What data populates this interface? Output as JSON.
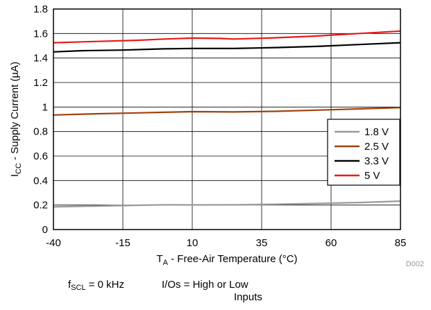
{
  "chart_data": {
    "type": "line",
    "xlabel": {
      "main": "T",
      "sub": "A",
      "rest": " - Free-Air Temperature (°C)"
    },
    "ylabel": {
      "main": "I",
      "sub": "CC",
      "rest": " - Supply Current (µA)"
    },
    "xlim": [
      -40,
      85
    ],
    "ylim": [
      0,
      1.8
    ],
    "x_ticks": [
      -40,
      -15,
      10,
      35,
      60,
      85
    ],
    "y_ticks": [
      0,
      0.2,
      0.4,
      0.6,
      0.8,
      1,
      1.2,
      1.4,
      1.6,
      1.8
    ],
    "x_tick_labels": [
      "-40",
      "-15",
      "10",
      "35",
      "60",
      "85"
    ],
    "y_tick_labels": [
      "0",
      "0.2",
      "0.4",
      "0.6",
      "0.8",
      "1",
      "1.2",
      "1.4",
      "1.6",
      "1.8"
    ],
    "grid": true,
    "legend_position": "right",
    "series": [
      {
        "name": "1.8 V",
        "color": "#999999",
        "x": [
          -40,
          -25,
          -10,
          0,
          10,
          25,
          40,
          55,
          70,
          85
        ],
        "y": [
          0.185,
          0.192,
          0.198,
          0.202,
          0.201,
          0.202,
          0.206,
          0.213,
          0.22,
          0.232
        ]
      },
      {
        "name": "2.5 V",
        "color": "#a0400d",
        "x": [
          -40,
          -25,
          -10,
          0,
          10,
          25,
          40,
          55,
          70,
          85
        ],
        "y": [
          0.935,
          0.945,
          0.952,
          0.957,
          0.962,
          0.96,
          0.965,
          0.975,
          0.985,
          0.995
        ]
      },
      {
        "name": "3.3 V",
        "color": "#000000",
        "x": [
          -40,
          -30,
          -15,
          0,
          10,
          25,
          40,
          55,
          70,
          85
        ],
        "y": [
          1.45,
          1.46,
          1.465,
          1.475,
          1.478,
          1.478,
          1.485,
          1.495,
          1.51,
          1.525
        ]
      },
      {
        "name": "5 V",
        "color": "#e8191d",
        "x": [
          -40,
          -25,
          -10,
          0,
          10,
          20,
          25,
          40,
          55,
          70,
          85
        ],
        "y": [
          1.525,
          1.535,
          1.545,
          1.555,
          1.563,
          1.56,
          1.555,
          1.565,
          1.58,
          1.6,
          1.62
        ]
      }
    ]
  },
  "figure_id": "D002",
  "conditions": {
    "fscl": {
      "main": "f",
      "sub": "SCL",
      "rest": " = 0 kHz"
    },
    "io_line1": "I/Os = High or Low",
    "io_line2": "Inputs"
  }
}
